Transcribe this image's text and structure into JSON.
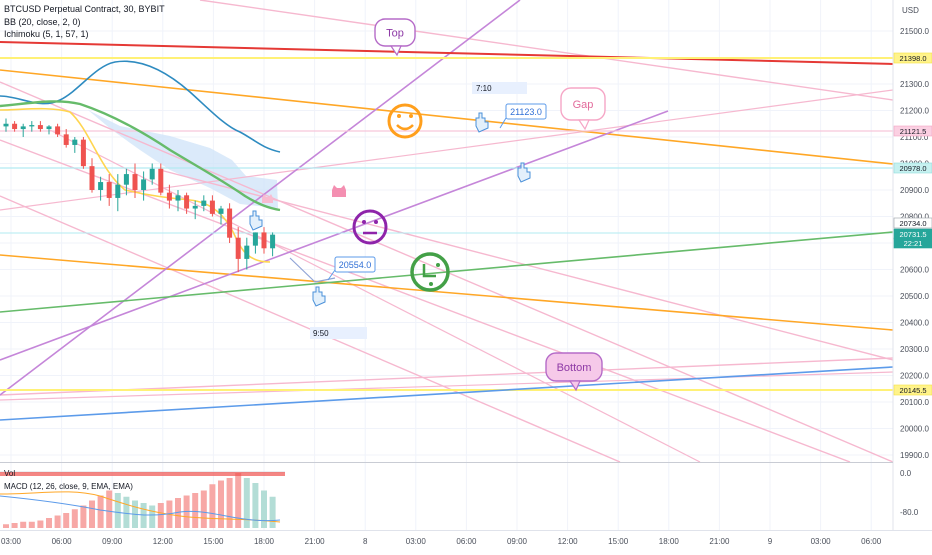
{
  "header": {
    "symbol_line": "BTCUSD Perpetual Contract, 30, BYBIT",
    "indicator_bb": "BB (20, close, 2, 0)",
    "indicator_ichimoku": "Ichimoku (5, 1, 57, 1)"
  },
  "axis": {
    "currency": "USD",
    "price_ticks": [
      21500,
      21400,
      21300,
      21200,
      21100,
      21000,
      20900,
      20800,
      20700,
      20600,
      20500,
      20400,
      20300,
      20200,
      20100,
      20000,
      19900
    ],
    "time_ticks": [
      "03:00",
      "06:00",
      "09:00",
      "12:00",
      "15:00",
      "18:00",
      "21:00",
      "8",
      "03:00",
      "06:00",
      "09:00",
      "12:00",
      "15:00",
      "18:00",
      "21:00",
      "9",
      "03:00",
      "06:00"
    ],
    "macd_ticks": [
      "0.0",
      "-80.0"
    ]
  },
  "price_tags": [
    {
      "text": "21398.0",
      "color": "#fff38a",
      "border": "#f5e342"
    },
    {
      "text": "21121.5",
      "color": "#fbd0e2",
      "border": "#f4a4c4"
    },
    {
      "text": "20978.0",
      "color": "#c6f1f0",
      "border": "#8fdede"
    },
    {
      "text": "20734.0",
      "color": "#ffffff",
      "border": "#9aa0a6"
    },
    {
      "text": "20731.5",
      "color": "#26a69a",
      "border": "#26a69a"
    },
    {
      "text": "22:21",
      "color": "#26a69a",
      "border": "#26a69a"
    },
    {
      "text": "20145.5",
      "color": "#fff38a",
      "border": "#f5e342"
    }
  ],
  "annotations": {
    "top": "Top",
    "gap": "Gap",
    "bottom": "Bottom",
    "price_label_1": "21123.0",
    "price_label_2": "20554.0",
    "time_label_1": "7:10",
    "time_label_2": "9:50"
  },
  "macd": {
    "vol_label": "Vol",
    "label": "MACD (12, 26, close, 9, EMA, EMA)"
  },
  "chart_data": {
    "type": "candlestick",
    "symbol": "BTCUSD",
    "interval": "30",
    "ylim": [
      19850,
      21580
    ],
    "grid": true,
    "candles": [
      {
        "o": 21140,
        "h": 21170,
        "l": 21120,
        "c": 21150
      },
      {
        "o": 21150,
        "h": 21160,
        "l": 21120,
        "c": 21130
      },
      {
        "o": 21130,
        "h": 21150,
        "l": 21100,
        "c": 21140
      },
      {
        "o": 21140,
        "h": 21160,
        "l": 21120,
        "c": 21145
      },
      {
        "o": 21145,
        "h": 21160,
        "l": 21120,
        "c": 21130
      },
      {
        "o": 21130,
        "h": 21145,
        "l": 21110,
        "c": 21140
      },
      {
        "o": 21140,
        "h": 21150,
        "l": 21100,
        "c": 21110
      },
      {
        "o": 21110,
        "h": 21130,
        "l": 21060,
        "c": 21070
      },
      {
        "o": 21070,
        "h": 21100,
        "l": 21040,
        "c": 21090
      },
      {
        "o": 21090,
        "h": 21100,
        "l": 20980,
        "c": 20990
      },
      {
        "o": 20990,
        "h": 21020,
        "l": 20890,
        "c": 20900
      },
      {
        "o": 20900,
        "h": 20950,
        "l": 20860,
        "c": 20930
      },
      {
        "o": 20930,
        "h": 20960,
        "l": 20840,
        "c": 20870
      },
      {
        "o": 20870,
        "h": 20960,
        "l": 20820,
        "c": 20920
      },
      {
        "o": 20920,
        "h": 20980,
        "l": 20880,
        "c": 20960
      },
      {
        "o": 20960,
        "h": 21000,
        "l": 20870,
        "c": 20900
      },
      {
        "o": 20900,
        "h": 20970,
        "l": 20860,
        "c": 20940
      },
      {
        "o": 20940,
        "h": 21000,
        "l": 20920,
        "c": 20980
      },
      {
        "o": 20980,
        "h": 21000,
        "l": 20880,
        "c": 20890
      },
      {
        "o": 20890,
        "h": 20920,
        "l": 20830,
        "c": 20860
      },
      {
        "o": 20860,
        "h": 20900,
        "l": 20820,
        "c": 20880
      },
      {
        "o": 20880,
        "h": 20890,
        "l": 20810,
        "c": 20830
      },
      {
        "o": 20830,
        "h": 20860,
        "l": 20790,
        "c": 20840
      },
      {
        "o": 20840,
        "h": 20880,
        "l": 20820,
        "c": 20860
      },
      {
        "o": 20860,
        "h": 20880,
        "l": 20800,
        "c": 20810
      },
      {
        "o": 20810,
        "h": 20840,
        "l": 20770,
        "c": 20830
      },
      {
        "o": 20830,
        "h": 20850,
        "l": 20700,
        "c": 20720
      },
      {
        "o": 20720,
        "h": 20760,
        "l": 20590,
        "c": 20640
      },
      {
        "o": 20640,
        "h": 20720,
        "l": 20600,
        "c": 20690
      },
      {
        "o": 20690,
        "h": 20740,
        "l": 20660,
        "c": 20740
      },
      {
        "o": 20740,
        "h": 20760,
        "l": 20660,
        "c": 20680
      },
      {
        "o": 20680,
        "h": 20740,
        "l": 20650,
        "c": 20731.5
      }
    ],
    "macd_histogram": [
      -3,
      -4,
      -5,
      -5,
      -6,
      -8,
      -10,
      -12,
      -15,
      -18,
      -22,
      -26,
      -30,
      -28,
      -25,
      -22,
      -20,
      -18,
      -20,
      -22,
      -24,
      -26,
      -28,
      -30,
      -35,
      -38,
      -40,
      -44,
      -40,
      -36,
      -30,
      -25
    ]
  }
}
